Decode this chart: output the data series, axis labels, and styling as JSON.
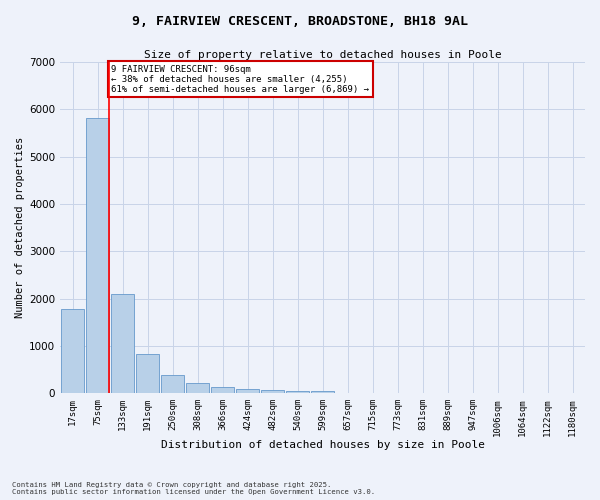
{
  "title_line1": "9, FAIRVIEW CRESCENT, BROADSTONE, BH18 9AL",
  "title_line2": "Size of property relative to detached houses in Poole",
  "xlabel": "Distribution of detached houses by size in Poole",
  "ylabel": "Number of detached properties",
  "bar_color": "#b8d0e8",
  "bar_edge_color": "#6699cc",
  "categories": [
    "17sqm",
    "75sqm",
    "133sqm",
    "191sqm",
    "250sqm",
    "308sqm",
    "366sqm",
    "424sqm",
    "482sqm",
    "540sqm",
    "599sqm",
    "657sqm",
    "715sqm",
    "773sqm",
    "831sqm",
    "889sqm",
    "947sqm",
    "1006sqm",
    "1064sqm",
    "1122sqm",
    "1180sqm"
  ],
  "values": [
    1780,
    5820,
    2100,
    830,
    390,
    220,
    130,
    100,
    80,
    55,
    50,
    0,
    0,
    0,
    0,
    0,
    0,
    0,
    0,
    0,
    0
  ],
  "ylim": [
    0,
    7000
  ],
  "yticks": [
    0,
    1000,
    2000,
    3000,
    4000,
    5000,
    6000,
    7000
  ],
  "property_line_x": 1,
  "property_size": "96sqm",
  "property_name": "9 FAIRVIEW CRESCENT",
  "pct_smaller": 38,
  "n_smaller": 4255,
  "pct_larger": 61,
  "n_larger": 6869,
  "annotation_box_color": "#cc0000",
  "background_color": "#eef2fa",
  "grid_color": "#c8d4e8",
  "footer_line1": "Contains HM Land Registry data © Crown copyright and database right 2025.",
  "footer_line2": "Contains public sector information licensed under the Open Government Licence v3.0."
}
